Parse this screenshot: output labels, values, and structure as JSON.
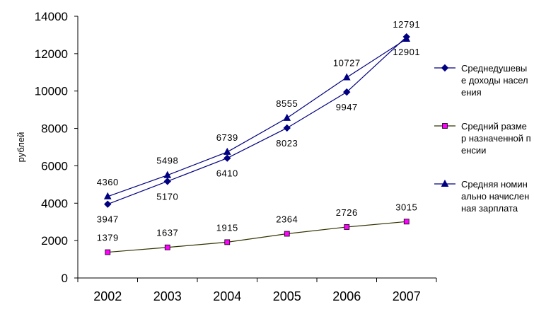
{
  "chart_data": {
    "type": "line",
    "categories": [
      "2002",
      "2003",
      "2004",
      "2005",
      "2006",
      "2007"
    ],
    "ylabel": "рублей",
    "ylim": [
      0,
      14000
    ],
    "yticks": [
      0,
      2000,
      4000,
      6000,
      8000,
      10000,
      12000,
      14000
    ],
    "grid": false,
    "legend_position": "right",
    "series": [
      {
        "name": "Среднедушевые доходы населения",
        "values": [
          3947,
          5170,
          6410,
          8023,
          9947,
          12901
        ],
        "color": "#000080",
        "marker": "diamond",
        "label_position": "below"
      },
      {
        "name": "Средний размер назначенной пенсии",
        "values": [
          1379,
          1637,
          1915,
          2364,
          2726,
          3015
        ],
        "color": "#FF00FF",
        "line_color": "#333300",
        "marker": "square",
        "label_position": "above"
      },
      {
        "name": "Средняя номинально начисленная зарплата",
        "values": [
          4360,
          5498,
          6739,
          8555,
          10727,
          12791
        ],
        "color": "#000080",
        "marker": "triangle",
        "label_position": "above"
      }
    ]
  }
}
